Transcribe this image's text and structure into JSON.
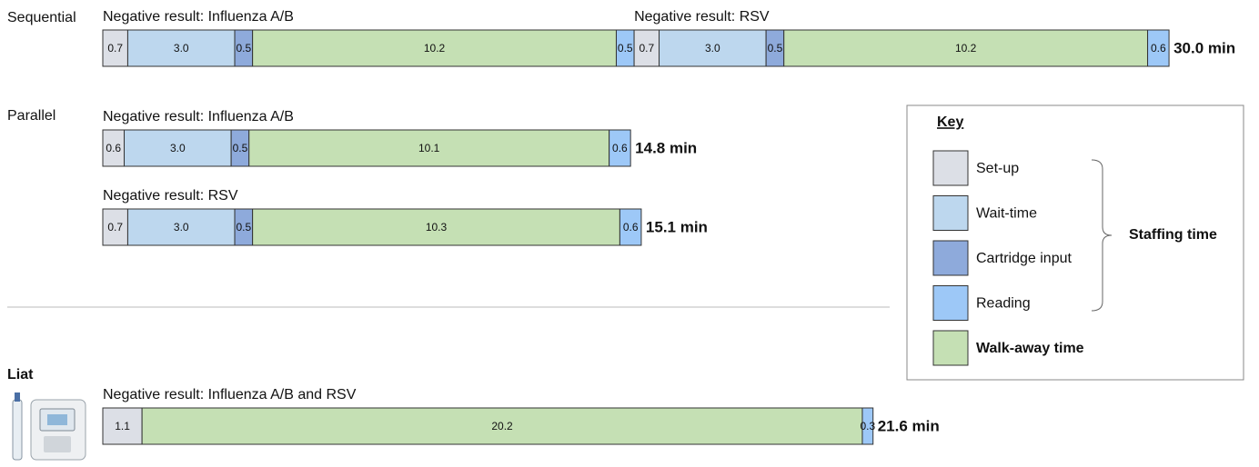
{
  "chart_data": {
    "type": "stacked-timeline",
    "sections": [
      {
        "label": "Sequential",
        "bars": [
          {
            "groups": [
              {
                "caption": "Negative result: Influenza A/B",
                "values": [
                  0.7,
                  3.0,
                  0.5,
                  10.2,
                  0.5
                ],
                "value_labels": [
                  "0.7",
                  "3.0",
                  "0.5",
                  "10.2",
                  "0.5"
                ],
                "colors": [
                  "#dcdfe6",
                  "#bdd7ee",
                  "#8eaadb",
                  "#c5e0b4",
                  "#9dc8f7"
                ]
              },
              {
                "caption": "Negative result: RSV",
                "values": [
                  0.7,
                  3.0,
                  0.5,
                  10.2,
                  0.6
                ],
                "value_labels": [
                  "0.7",
                  "3.0",
                  "0.5",
                  "10.2",
                  "0.6"
                ],
                "colors": [
                  "#dcdfe6",
                  "#bdd7ee",
                  "#8eaadb",
                  "#c5e0b4",
                  "#9dc8f7"
                ]
              }
            ],
            "total": "30.0 min"
          }
        ]
      },
      {
        "label": "Parallel",
        "bars": [
          {
            "groups": [
              {
                "caption": "Negative result: Influenza A/B",
                "values": [
                  0.6,
                  3.0,
                  0.5,
                  10.1,
                  0.6
                ],
                "value_labels": [
                  "0.6",
                  "3.0",
                  "0.5",
                  "10.1",
                  "0.6"
                ],
                "colors": [
                  "#dcdfe6",
                  "#bdd7ee",
                  "#8eaadb",
                  "#c5e0b4",
                  "#9dc8f7"
                ]
              }
            ],
            "total": "14.8 min"
          },
          {
            "groups": [
              {
                "caption": "Negative result: RSV",
                "values": [
                  0.7,
                  3.0,
                  0.5,
                  10.3,
                  0.6
                ],
                "value_labels": [
                  "0.7",
                  "3.0",
                  "0.5",
                  "10.3",
                  "0.6"
                ],
                "colors": [
                  "#dcdfe6",
                  "#bdd7ee",
                  "#8eaadb",
                  "#c5e0b4",
                  "#9dc8f7"
                ]
              }
            ],
            "total": "15.1 min"
          }
        ]
      },
      {
        "label": "Liat",
        "bars": [
          {
            "groups": [
              {
                "caption": "Negative result: Influenza A/B and RSV",
                "values": [
                  1.1,
                  20.2,
                  0.3
                ],
                "value_labels": [
                  "1.1",
                  "20.2",
                  "0.3"
                ],
                "colors": [
                  "#dcdfe6",
                  "#c5e0b4",
                  "#9dc8f7"
                ]
              }
            ],
            "total": "21.6 min"
          }
        ]
      }
    ],
    "legend": {
      "title": "Key",
      "items": [
        {
          "name": "Set-up",
          "color": "#dcdfe6"
        },
        {
          "name": "Wait-time",
          "color": "#bdd7ee"
        },
        {
          "name": "Cartridge input",
          "color": "#8eaadb"
        },
        {
          "name": "Reading",
          "color": "#9dc8f7"
        },
        {
          "name": "Walk-away time",
          "color": "#c5e0b4"
        }
      ],
      "bracket": "Staffing time"
    }
  }
}
